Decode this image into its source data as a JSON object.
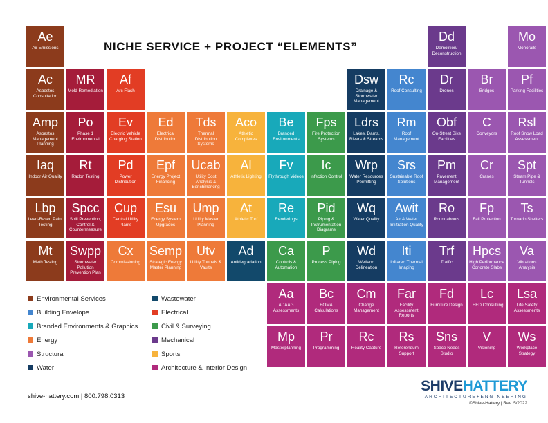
{
  "title": "NICHE SERVICE + PROJECT “ELEMENTS”",
  "colors": {
    "environmental": "#8c3b1c",
    "building": "#4486cf",
    "branded": "#18a9ba",
    "energy": "#ee7a39",
    "structural": "#9b57b0",
    "water": "#153c62",
    "wastewater": "#12496b",
    "electrical": "#e23d24",
    "civil": "#3c9a4b",
    "mechanical": "#6b3a8c",
    "sports": "#f7b33c",
    "arch": "#b02a7c",
    "safety": "#a51c3a"
  },
  "elements": [
    {
      "row": 0,
      "col": 0,
      "sym": "Ae",
      "name": "Air Emissions",
      "cat": "environmental"
    },
    {
      "row": 0,
      "col": 10,
      "sym": "Dd",
      "name": "Demolition/ Deconstruction",
      "cat": "mechanical"
    },
    {
      "row": 0,
      "col": 12,
      "sym": "Mo",
      "name": "Monorails",
      "cat": "structural"
    },
    {
      "row": 1,
      "col": 0,
      "sym": "Ac",
      "name": "Asbestos Consultation",
      "cat": "environmental"
    },
    {
      "row": 1,
      "col": 1,
      "sym": "MR",
      "name": "Mold Remediation",
      "cat": "safety"
    },
    {
      "row": 1,
      "col": 2,
      "sym": "Af",
      "name": "Arc Flash",
      "cat": "electrical"
    },
    {
      "row": 1,
      "col": 8,
      "sym": "Dsw",
      "name": "Drainage & Stormwater Management",
      "cat": "water"
    },
    {
      "row": 1,
      "col": 9,
      "sym": "Rc",
      "name": "Roof Consulting",
      "cat": "building"
    },
    {
      "row": 1,
      "col": 10,
      "sym": "Dr",
      "name": "Drones",
      "cat": "mechanical"
    },
    {
      "row": 1,
      "col": 11,
      "sym": "Br",
      "name": "Bridges",
      "cat": "structural"
    },
    {
      "row": 1,
      "col": 12,
      "sym": "Pf",
      "name": "Parking Facilities",
      "cat": "structural"
    },
    {
      "row": 2,
      "col": 0,
      "sym": "Amp",
      "name": "Asbestos Management Planning",
      "cat": "environmental"
    },
    {
      "row": 2,
      "col": 1,
      "sym": "Po",
      "name": "Phase 1 Environmental",
      "cat": "safety"
    },
    {
      "row": 2,
      "col": 2,
      "sym": "Ev",
      "name": "Electric Vehicle Charging Station",
      "cat": "electrical"
    },
    {
      "row": 2,
      "col": 3,
      "sym": "Ed",
      "name": "Electrical Distribution",
      "cat": "energy"
    },
    {
      "row": 2,
      "col": 4,
      "sym": "Tds",
      "name": "Thermal Distribution Systems",
      "cat": "energy"
    },
    {
      "row": 2,
      "col": 5,
      "sym": "Aco",
      "name": "Athletic Complexes",
      "cat": "sports"
    },
    {
      "row": 2,
      "col": 6,
      "sym": "Be",
      "name": "Branded Environments",
      "cat": "branded"
    },
    {
      "row": 2,
      "col": 7,
      "sym": "Fps",
      "name": "Fire Protection Systems",
      "cat": "civil"
    },
    {
      "row": 2,
      "col": 8,
      "sym": "Ldrs",
      "name": "Lakes, Dams, Rivers & Streams",
      "cat": "water"
    },
    {
      "row": 2,
      "col": 9,
      "sym": "Rm",
      "name": "Roof Management",
      "cat": "building"
    },
    {
      "row": 2,
      "col": 10,
      "sym": "Obf",
      "name": "On-Street Bike Facilities",
      "cat": "mechanical"
    },
    {
      "row": 2,
      "col": 11,
      "sym": "C",
      "name": "Conveyors",
      "cat": "structural"
    },
    {
      "row": 2,
      "col": 12,
      "sym": "Rsl",
      "name": "Roof Snow Load Assessment",
      "cat": "structural"
    },
    {
      "row": 3,
      "col": 0,
      "sym": "Iaq",
      "name": "Indoor Air Quality",
      "cat": "environmental"
    },
    {
      "row": 3,
      "col": 1,
      "sym": "Rt",
      "name": "Radon Testing",
      "cat": "safety"
    },
    {
      "row": 3,
      "col": 2,
      "sym": "Pd",
      "name": "Power Distribution",
      "cat": "electrical"
    },
    {
      "row": 3,
      "col": 3,
      "sym": "Epf",
      "name": "Energy Project Financing",
      "cat": "energy"
    },
    {
      "row": 3,
      "col": 4,
      "sym": "Ucab",
      "name": "Utility Cost Analysis & Benchmarking",
      "cat": "energy"
    },
    {
      "row": 3,
      "col": 5,
      "sym": "Al",
      "name": "Athletic Lighting",
      "cat": "sports"
    },
    {
      "row": 3,
      "col": 6,
      "sym": "Fv",
      "name": "Flythrough Videos",
      "cat": "branded"
    },
    {
      "row": 3,
      "col": 7,
      "sym": "Ic",
      "name": "Infection Control",
      "cat": "civil"
    },
    {
      "row": 3,
      "col": 8,
      "sym": "Wrp",
      "name": "Water Resources Permitting",
      "cat": "water"
    },
    {
      "row": 3,
      "col": 9,
      "sym": "Srs",
      "name": "Sustainable Roof Solutions",
      "cat": "building"
    },
    {
      "row": 3,
      "col": 10,
      "sym": "Pm",
      "name": "Pavement Management",
      "cat": "mechanical"
    },
    {
      "row": 3,
      "col": 11,
      "sym": "Cr",
      "name": "Cranes",
      "cat": "structural"
    },
    {
      "row": 3,
      "col": 12,
      "sym": "Spt",
      "name": "Steam Pipe & Tunnels",
      "cat": "structural"
    },
    {
      "row": 4,
      "col": 0,
      "sym": "Lbp",
      "name": "Lead-Based Paint Testing",
      "cat": "environmental"
    },
    {
      "row": 4,
      "col": 1,
      "sym": "Spcc",
      "name": "Spill Prevention, Control & Countermeasure",
      "cat": "safety"
    },
    {
      "row": 4,
      "col": 2,
      "sym": "Cup",
      "name": "Central Utility Plants",
      "cat": "electrical"
    },
    {
      "row": 4,
      "col": 3,
      "sym": "Esu",
      "name": "Energy System Upgrades",
      "cat": "energy"
    },
    {
      "row": 4,
      "col": 4,
      "sym": "Ump",
      "name": "Utility Master Planning",
      "cat": "energy"
    },
    {
      "row": 4,
      "col": 5,
      "sym": "At",
      "name": "Athletic Turf",
      "cat": "sports"
    },
    {
      "row": 4,
      "col": 6,
      "sym": "Re",
      "name": "Renderings",
      "cat": "branded"
    },
    {
      "row": 4,
      "col": 7,
      "sym": "Pid",
      "name": "Piping & Instrumentation Diagrams",
      "cat": "civil"
    },
    {
      "row": 4,
      "col": 8,
      "sym": "Wq",
      "name": "Water Quality",
      "cat": "water"
    },
    {
      "row": 4,
      "col": 9,
      "sym": "Awit",
      "name": "Air & Water Infiltration Quality",
      "cat": "building"
    },
    {
      "row": 4,
      "col": 10,
      "sym": "Ro",
      "name": "Roundabouts",
      "cat": "mechanical"
    },
    {
      "row": 4,
      "col": 11,
      "sym": "Fp",
      "name": "Fall Protection",
      "cat": "structural"
    },
    {
      "row": 4,
      "col": 12,
      "sym": "Ts",
      "name": "Tornado Shelters",
      "cat": "structural"
    },
    {
      "row": 5,
      "col": 0,
      "sym": "Mt",
      "name": "Meth Testing",
      "cat": "environmental"
    },
    {
      "row": 5,
      "col": 1,
      "sym": "Swpp",
      "name": "Stormwater Pollution Prevention Plan",
      "cat": "safety"
    },
    {
      "row": 5,
      "col": 2,
      "sym": "Cx",
      "name": "Commissioning",
      "cat": "energy"
    },
    {
      "row": 5,
      "col": 3,
      "sym": "Semp",
      "name": "Strategic Energy Master Planning",
      "cat": "energy"
    },
    {
      "row": 5,
      "col": 4,
      "sym": "Utv",
      "name": "Utility Tunnels & Vaults",
      "cat": "energy"
    },
    {
      "row": 5,
      "col": 5,
      "sym": "Ad",
      "name": "Antidegradation",
      "cat": "wastewater"
    },
    {
      "row": 5,
      "col": 6,
      "sym": "Ca",
      "name": "Controls & Automation",
      "cat": "civil"
    },
    {
      "row": 5,
      "col": 7,
      "sym": "P",
      "name": "Process Piping",
      "cat": "civil"
    },
    {
      "row": 5,
      "col": 8,
      "sym": "Wd",
      "name": "Wetland Delineation",
      "cat": "water"
    },
    {
      "row": 5,
      "col": 9,
      "sym": "Iti",
      "name": "Infrared Thermal Imaging",
      "cat": "building"
    },
    {
      "row": 5,
      "col": 10,
      "sym": "Trf",
      "name": "Traffic",
      "cat": "mechanical"
    },
    {
      "row": 5,
      "col": 11,
      "sym": "Hpcs",
      "name": "High Performance Concrete Slabs",
      "cat": "structural"
    },
    {
      "row": 5,
      "col": 12,
      "sym": "Va",
      "name": "Vibrations Analysis",
      "cat": "structural"
    },
    {
      "row": 6,
      "col": 6,
      "sym": "Aa",
      "name": "ADAAG Assessments",
      "cat": "arch"
    },
    {
      "row": 6,
      "col": 7,
      "sym": "Bc",
      "name": "BOMA Calculations",
      "cat": "arch"
    },
    {
      "row": 6,
      "col": 8,
      "sym": "Cm",
      "name": "Change Management",
      "cat": "arch"
    },
    {
      "row": 6,
      "col": 9,
      "sym": "Far",
      "name": "Facility Assessment Reports",
      "cat": "arch"
    },
    {
      "row": 6,
      "col": 10,
      "sym": "Fd",
      "name": "Furniture Design",
      "cat": "arch"
    },
    {
      "row": 6,
      "col": 11,
      "sym": "Lc",
      "name": "LEED Consulting",
      "cat": "arch"
    },
    {
      "row": 6,
      "col": 12,
      "sym": "Lsa",
      "name": "Life Safety Assessments",
      "cat": "arch"
    },
    {
      "row": 7,
      "col": 6,
      "sym": "Mp",
      "name": "Masterplanning",
      "cat": "arch"
    },
    {
      "row": 7,
      "col": 7,
      "sym": "Pr",
      "name": "Programming",
      "cat": "arch"
    },
    {
      "row": 7,
      "col": 8,
      "sym": "Rc",
      "name": "Reality Capture",
      "cat": "arch"
    },
    {
      "row": 7,
      "col": 9,
      "sym": "Rs",
      "name": "Referendum Support",
      "cat": "arch"
    },
    {
      "row": 7,
      "col": 10,
      "sym": "Sns",
      "name": "Space Needs Studio",
      "cat": "arch"
    },
    {
      "row": 7,
      "col": 11,
      "sym": "V",
      "name": "Visioning",
      "cat": "arch"
    },
    {
      "row": 7,
      "col": 12,
      "sym": "Ws",
      "name": "Workplace Strategy",
      "cat": "arch"
    }
  ],
  "legend": [
    {
      "label": "Environmental Services",
      "cat": "environmental"
    },
    {
      "label": "Building Envelope",
      "cat": "building"
    },
    {
      "label": "Branded Environments & Graphics",
      "cat": "branded"
    },
    {
      "label": "Energy",
      "cat": "energy"
    },
    {
      "label": "Structural",
      "cat": "structural"
    },
    {
      "label": "Water",
      "cat": "water"
    },
    {
      "label": "Wastewater",
      "cat": "wastewater"
    },
    {
      "label": "Electrical",
      "cat": "electrical"
    },
    {
      "label": "Civil & Surveying",
      "cat": "civil"
    },
    {
      "label": "Mechanical",
      "cat": "mechanical"
    },
    {
      "label": "Sports",
      "cat": "sports"
    },
    {
      "label": "Architecture & Interior Design",
      "cat": "arch"
    }
  ],
  "footer": {
    "contact": "shive-hattery.com | 800.798.0313",
    "brand_left": "SHIVE",
    "brand_right": "HATTERY",
    "tagline": "ARCHITECTURE+ENGINEERING",
    "rev": "©Shive-Hattery | Rev. 5/2022"
  }
}
